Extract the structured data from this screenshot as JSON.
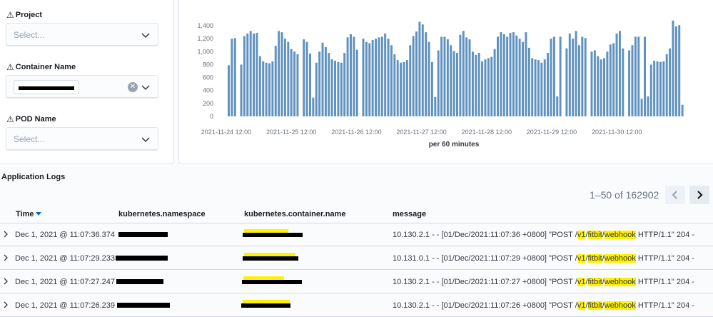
{
  "filters": [
    {
      "label": "Project",
      "placeholder": "Select...",
      "has_value": false
    },
    {
      "label": "Container Name",
      "placeholder": "",
      "has_value": true
    },
    {
      "label": "POD Name",
      "placeholder": "Select...",
      "has_value": false
    }
  ],
  "chart_data": {
    "type": "bar",
    "xlabel": "per 60 minutes",
    "ylim": [
      0,
      1500
    ],
    "yticks": [
      "1,400",
      "1,200",
      "1,000",
      "800",
      "600",
      "400",
      "200",
      "0"
    ],
    "ytick_values": [
      1400,
      1200,
      1000,
      800,
      600,
      400,
      200,
      0
    ],
    "xticks": [
      "2021-11-24 12:00",
      "2021-11-25 12:00",
      "2021-11-26 12:00",
      "2021-11-27 12:00",
      "2021-11-28 12:00",
      "2021-11-29 12:00",
      "2021-11-30 12:00"
    ],
    "bar_color": "#6092c0",
    "values": [
      790,
      1200,
      1210,
      0,
      800,
      1240,
      1280,
      1320,
      1280,
      1290,
      930,
      850,
      830,
      820,
      850,
      1090,
      1320,
      1300,
      1200,
      1150,
      1040,
      1000,
      960,
      0,
      1190,
      1150,
      970,
      290,
      830,
      1000,
      1140,
      1070,
      980,
      880,
      860,
      840,
      830,
      980,
      1220,
      1270,
      1230,
      1030,
      0,
      1200,
      1150,
      1130,
      1180,
      1200,
      1220,
      1230,
      1280,
      1200,
      1100,
      960,
      870,
      830,
      840,
      870,
      1100,
      1240,
      1310,
      1460,
      1420,
      1300,
      1150,
      840,
      300,
      1020,
      1230,
      1230,
      1190,
      1100,
      1010,
      980,
      1260,
      1320,
      1220,
      1190,
      1000,
      950,
      980,
      850,
      880,
      900,
      920,
      1040,
      1230,
      1300,
      1270,
      1230,
      1290,
      1300,
      1250,
      1200,
      1150,
      1300,
      1060,
      900,
      880,
      870,
      830,
      880,
      980,
      1200,
      1230,
      310,
      1230,
      0,
      1050,
      1280,
      1200,
      1320,
      1100,
      1230,
      1210,
      0,
      1000,
      1020,
      930,
      880,
      900,
      1000,
      1110,
      1130,
      1280,
      1320,
      1050,
      0,
      1020,
      1100,
      1230,
      1230,
      270,
      1230,
      310,
      800,
      860,
      850,
      840,
      850,
      960,
      1050,
      1480,
      1390,
      1410,
      180
    ]
  },
  "logs": {
    "title": "Application Logs",
    "pagination": "1–50 of 162902",
    "columns": [
      "Time",
      "kubernetes.namespace",
      "kubernetes.container.name",
      "message"
    ],
    "rows": [
      {
        "time": "Dec 1, 2021 @ 11:07:36.374",
        "msg_pre": "10.130.2.1 - - [01/Dec/2021:11:07:36 +0800] \"POST /",
        "msg_post": " HTTP/1.1\" 204 -"
      },
      {
        "time": "Dec 1, 2021 @ 11:07:29.233",
        "msg_pre": "10.131.0.1 - - [01/Dec/2021:11:07:29 +0800] \"POST /",
        "msg_post": " HTTP/1.1\" 204 -"
      },
      {
        "time": "Dec 1, 2021 @ 11:07:27.247",
        "msg_pre": "10.130.2.1 - - [01/Dec/2021:11:07:27 +0800] \"POST /",
        "msg_post": " HTTP/1.1\" 204 -"
      },
      {
        "time": "Dec 1, 2021 @ 11:07:26.239",
        "msg_pre": "10.130.2.1 - - [01/Dec/2021:11:07:26 +0800] \"POST /",
        "msg_post": " HTTP/1.1\" 204 -"
      }
    ],
    "path_parts": [
      "v1",
      "fitbit",
      "webhook"
    ]
  }
}
